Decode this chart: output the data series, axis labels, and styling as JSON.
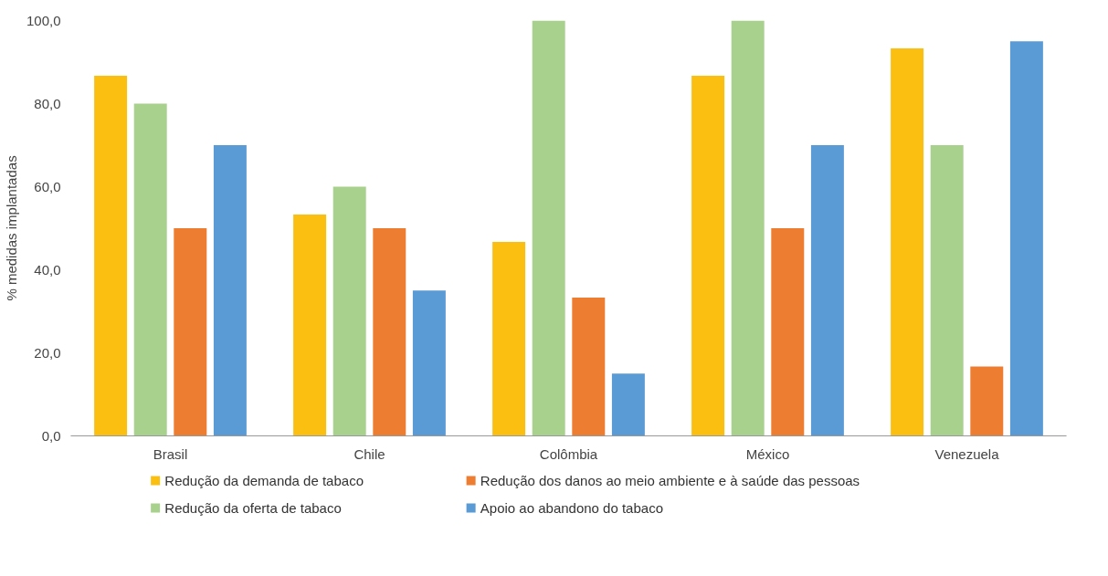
{
  "chart_data": {
    "type": "bar",
    "ylabel": "% medidas implantadas",
    "categories": [
      "Brasil",
      "Chile",
      "Colômbia",
      "México",
      "Venezuela"
    ],
    "series": [
      {
        "name": "Redução da demanda de tabaco",
        "color": "#fbbf11",
        "values": [
          86.7,
          53.3,
          46.7,
          86.7,
          93.3
        ]
      },
      {
        "name": "Redução da oferta de tabaco",
        "color": "#a9d18e",
        "values": [
          80,
          60,
          100,
          100,
          70
        ]
      },
      {
        "name": "Redução dos danos ao meio ambiente e à saúde das pessoas",
        "color": "#ed7d31",
        "values": [
          50,
          50,
          33.3,
          50,
          16.7
        ]
      },
      {
        "name": "Apoio ao abandono do tabaco",
        "color": "#5b9bd5",
        "values": [
          70,
          35,
          15,
          70,
          95
        ]
      }
    ],
    "ylim": [
      0,
      100
    ],
    "yticks": [
      {
        "value": 0,
        "label": "0,0"
      },
      {
        "value": 20,
        "label": "20,0"
      },
      {
        "value": 40,
        "label": "40,0"
      },
      {
        "value": 60,
        "label": "60,0"
      },
      {
        "value": 80,
        "label": "80,0"
      },
      {
        "value": 100,
        "label": "100,0"
      }
    ],
    "grid": false,
    "legend": "bottom"
  }
}
